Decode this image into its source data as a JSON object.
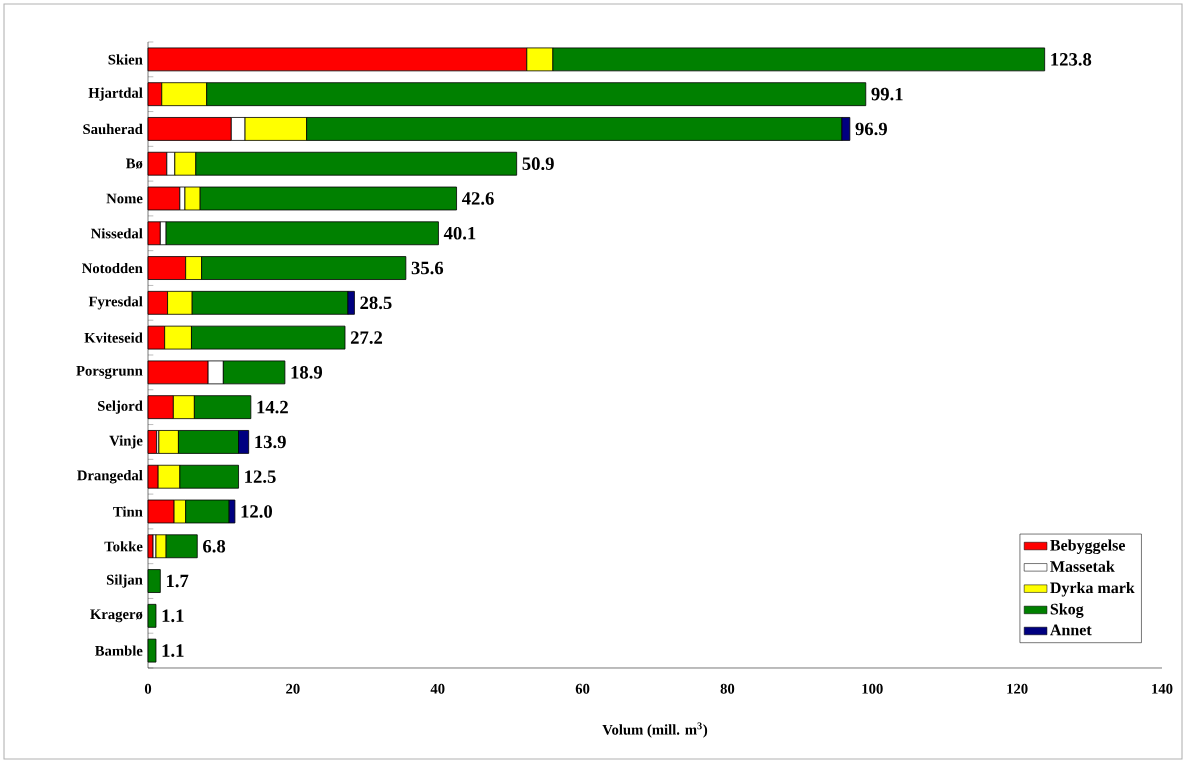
{
  "chart_data": {
    "type": "bar",
    "orientation": "horizontal",
    "stacked": true,
    "categories": [
      "Skien",
      "Hjartdal",
      "Sauherad",
      "Bø",
      "Nome",
      "Nissedal",
      "Notodden",
      "Fyresdal",
      "Kviteseid",
      "Porsgrunn",
      "Seljord",
      "Vinje",
      "Drangedal",
      "Tinn",
      "Tokke",
      "Siljan",
      "Kragerø",
      "Bamble"
    ],
    "series": [
      {
        "name": "Bebyggelse",
        "color": "#ff0000",
        "values": [
          52.3,
          1.9,
          11.5,
          2.6,
          4.4,
          1.7,
          5.2,
          2.7,
          2.3,
          8.3,
          3.5,
          1.2,
          1.4,
          3.6,
          0.7,
          null,
          null,
          null
        ]
      },
      {
        "name": "Massetak",
        "color": "#ffffff",
        "values": [
          null,
          null,
          1.9,
          1.1,
          0.7,
          0.8,
          null,
          null,
          null,
          2.1,
          null,
          0.3,
          null,
          null,
          0.4,
          null,
          null,
          null
        ]
      },
      {
        "name": "Dyrka mark",
        "color": "#ffff00",
        "values": [
          3.6,
          6.2,
          8.5,
          2.9,
          2.1,
          null,
          2.2,
          3.4,
          3.7,
          null,
          2.9,
          2.7,
          3.0,
          1.6,
          1.4,
          null,
          null,
          null
        ]
      },
      {
        "name": "Skog",
        "color": "#008000",
        "values": [
          67.9,
          91.0,
          73.9,
          44.3,
          35.4,
          37.6,
          28.2,
          21.5,
          21.2,
          8.5,
          7.8,
          8.3,
          8.1,
          6.0,
          4.3,
          1.7,
          1.1,
          1.1
        ]
      },
      {
        "name": "Annet",
        "color": "#000080",
        "values": [
          null,
          null,
          1.1,
          null,
          null,
          null,
          null,
          0.9,
          null,
          null,
          null,
          1.4,
          null,
          0.8,
          null,
          null,
          null,
          null
        ]
      }
    ],
    "totals": [
      "123.8",
      "99.1",
      "96.9",
      "50.9",
      "42.6",
      "40.1",
      "35.6",
      "28.5",
      "27.2",
      "18.9",
      "14.2",
      "13.9",
      "12.5",
      "12.0",
      "6.8",
      "1.7",
      "1.1",
      "1.1"
    ],
    "xlim": [
      0,
      140
    ],
    "xticks": [
      0,
      20,
      40,
      60,
      80,
      100,
      120,
      140
    ],
    "xlabel": "Volum (mill. m$^{3}$)",
    "legend": "bottom right"
  }
}
